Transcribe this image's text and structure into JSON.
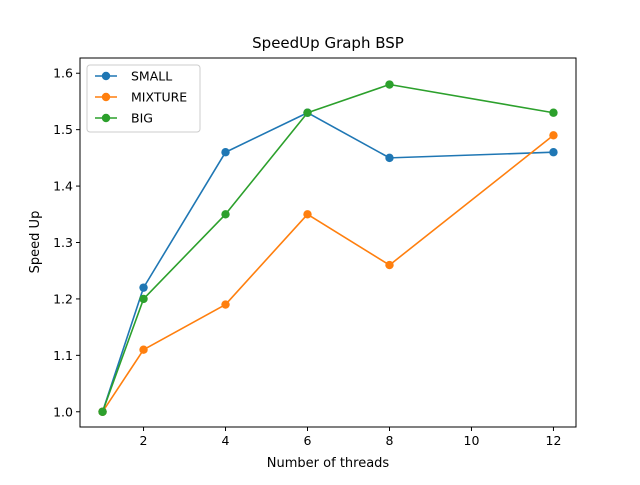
{
  "chart_data": {
    "type": "line",
    "title": "SpeedUp Graph BSP",
    "xlabel": "Number of threads",
    "ylabel": "Speed Up",
    "x": [
      1,
      2,
      4,
      6,
      8,
      12
    ],
    "xlim": [
      0.45,
      12.55
    ],
    "ylim": [
      0.973,
      1.627
    ],
    "xticks": [
      2,
      4,
      6,
      8,
      10,
      12
    ],
    "yticks": [
      1.0,
      1.1,
      1.2,
      1.3,
      1.4,
      1.5,
      1.6
    ],
    "grid": false,
    "legend_position": "top-left",
    "series": [
      {
        "name": "SMALL",
        "color": "#1f77b4",
        "values": [
          1.0,
          1.22,
          1.46,
          1.53,
          1.45,
          1.46
        ]
      },
      {
        "name": "MIXTURE",
        "color": "#ff7f0e",
        "values": [
          1.0,
          1.11,
          1.19,
          1.35,
          1.26,
          1.49
        ]
      },
      {
        "name": "BIG",
        "color": "#2ca02c",
        "values": [
          1.0,
          1.2,
          1.35,
          1.53,
          1.58,
          1.53
        ]
      }
    ]
  }
}
